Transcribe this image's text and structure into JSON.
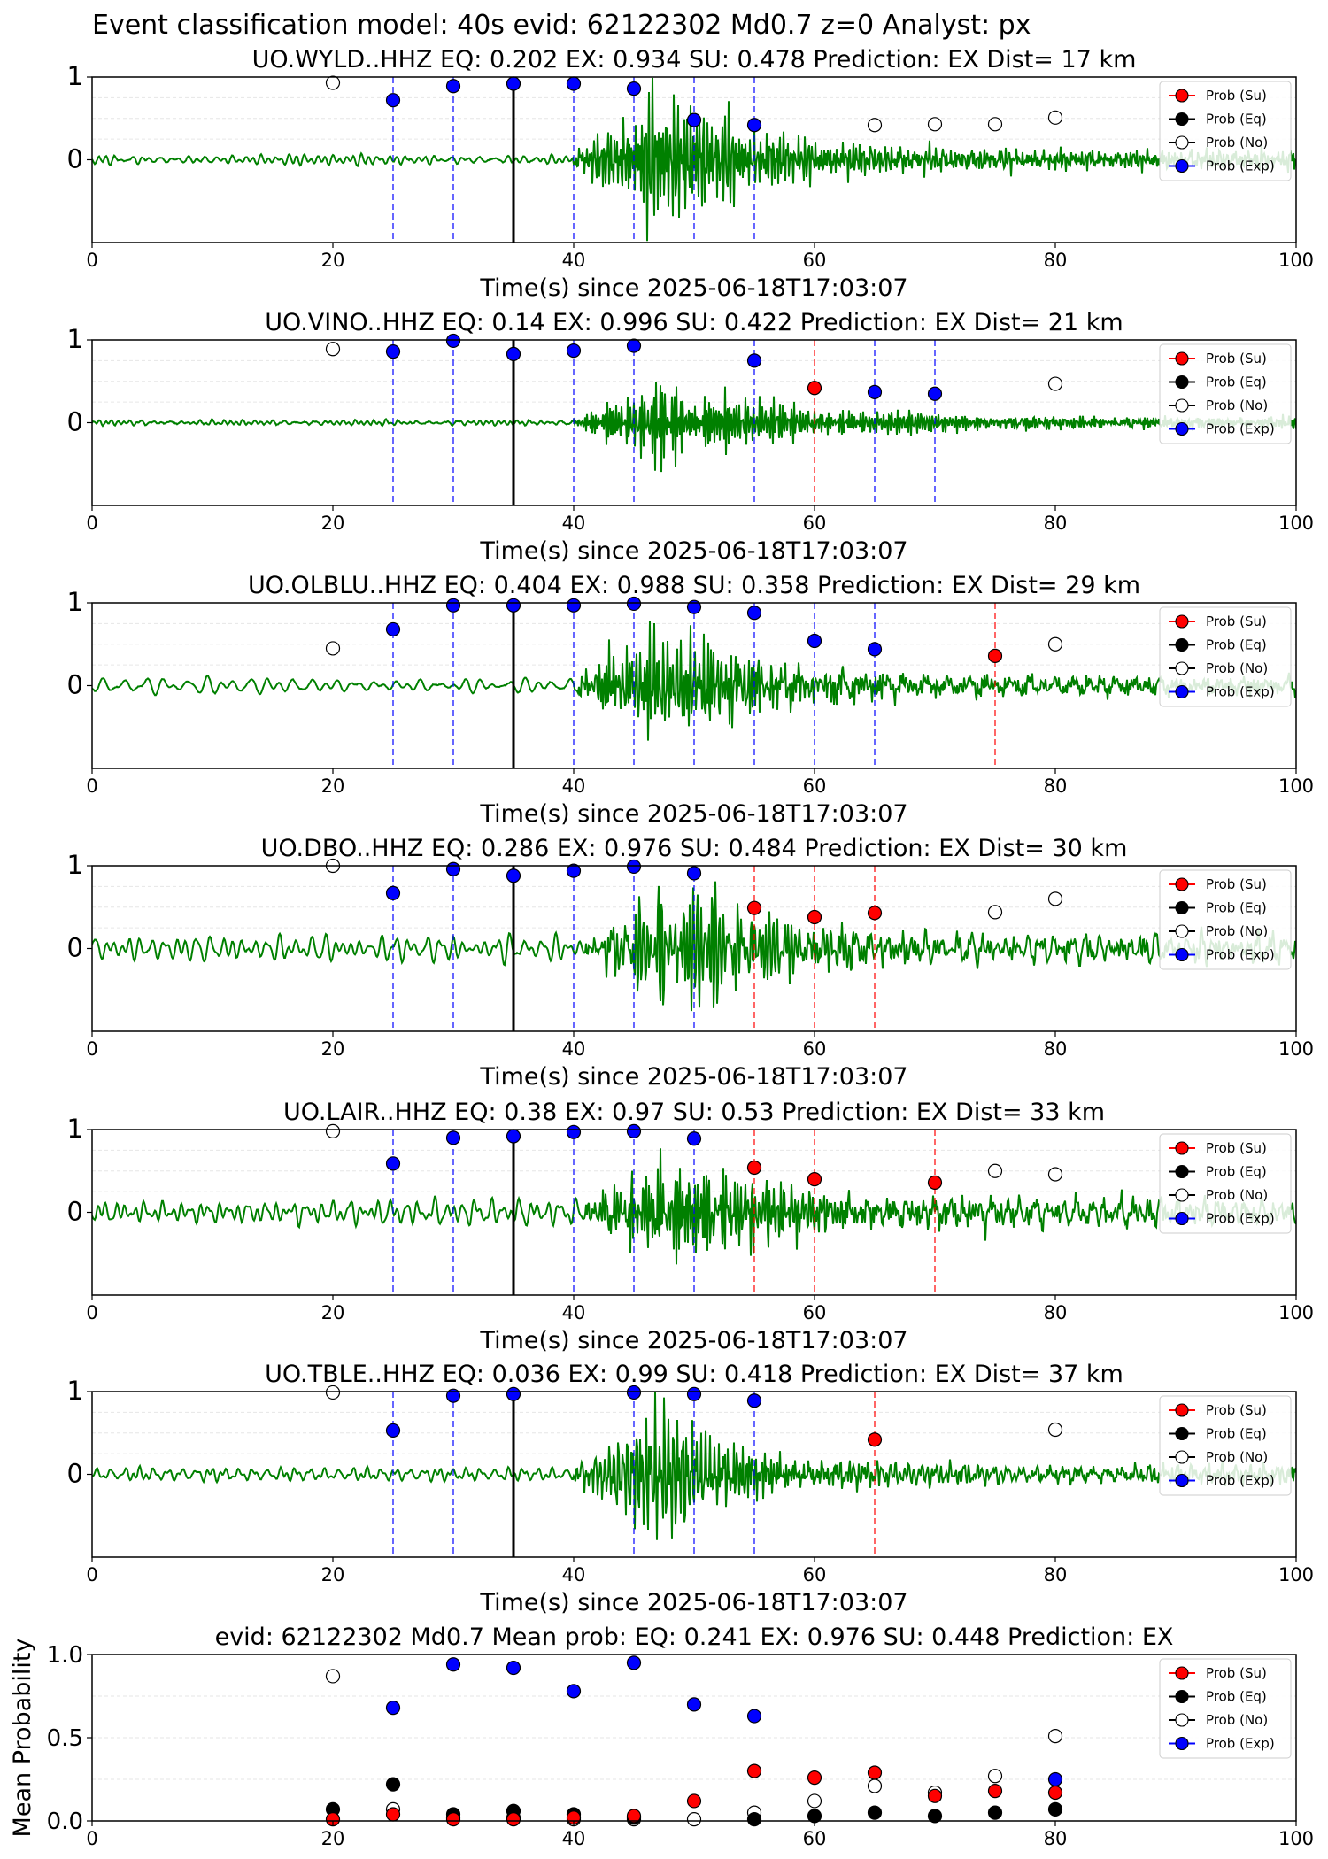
{
  "figure": {
    "suptitle": "Event classification model: 40s evid: 62122302 Md0.7 z=0 Analyst: px"
  },
  "legend": [
    {
      "label": "Prob (Su)",
      "key": "su",
      "color": "#ff0000",
      "fill": "#ff0000"
    },
    {
      "label": "Prob (Eq)",
      "key": "eq",
      "color": "#000000",
      "fill": "#000000"
    },
    {
      "label": "Prob (No)",
      "key": "no",
      "color": "#000000",
      "fill": "#ffffff"
    },
    {
      "label": "Prob (Exp)",
      "key": "exp",
      "color": "#0000ff",
      "fill": "#0000ff"
    }
  ],
  "colors": {
    "waveform": "#008000",
    "origin_line": "#000000",
    "exp_line": "#0000ff",
    "su_line": "#ff0000"
  },
  "chart_data": [
    {
      "type": "scatter",
      "title": "UO.WYLD..HHZ   EQ: 0.202  EX: 0.934  SU: 0.478   Prediction: EX    Dist= 17 km",
      "xlabel": "Time(s) since 2025-06-18T17:03:07",
      "xlim": [
        0,
        100
      ],
      "ylim": [
        -1,
        1
      ],
      "xticks": [
        "0",
        "20",
        "40",
        "60",
        "80",
        "100"
      ],
      "yticks": [
        "0",
        "1"
      ],
      "origin_time": 35,
      "waveform_onset": 40,
      "amp_pre": 0.05,
      "amp_event": 0.95,
      "wf_seed": 3,
      "points": {
        "no": [
          [
            20,
            0.93
          ],
          [
            65,
            0.42
          ],
          [
            70,
            0.43
          ],
          [
            75,
            0.43
          ],
          [
            80,
            0.51
          ]
        ],
        "exp": [
          [
            25,
            0.72
          ],
          [
            30,
            0.89
          ],
          [
            35,
            0.92
          ],
          [
            40,
            0.92
          ],
          [
            45,
            0.86
          ],
          [
            50,
            0.48
          ],
          [
            55,
            0.42
          ]
        ],
        "su": []
      },
      "vlines_exp": [
        25,
        30,
        40,
        45,
        50,
        55
      ],
      "vlines_su": []
    },
    {
      "type": "scatter",
      "title": "UO.VINO..HHZ   EQ: 0.14  EX: 0.996  SU: 0.422   Prediction: EX    Dist= 21 km",
      "xlabel": "Time(s) since 2025-06-18T17:03:07",
      "xlim": [
        0,
        100
      ],
      "ylim": [
        -1,
        1
      ],
      "xticks": [
        "0",
        "20",
        "40",
        "60",
        "80",
        "100"
      ],
      "yticks": [
        "0",
        "1"
      ],
      "origin_time": 35,
      "waveform_onset": 40,
      "amp_pre": 0.03,
      "amp_event": 0.9,
      "wf_seed": 7,
      "points": {
        "no": [
          [
            20,
            0.89
          ],
          [
            80,
            0.47
          ]
        ],
        "exp": [
          [
            25,
            0.86
          ],
          [
            30,
            0.99
          ],
          [
            35,
            0.83
          ],
          [
            40,
            0.87
          ],
          [
            45,
            0.93
          ],
          [
            55,
            0.75
          ],
          [
            65,
            0.37
          ],
          [
            70,
            0.35
          ]
        ],
        "su": [
          [
            60,
            0.42
          ]
        ]
      },
      "vlines_exp": [
        25,
        30,
        40,
        45,
        55,
        65,
        70
      ],
      "vlines_su": [
        60
      ]
    },
    {
      "type": "scatter",
      "title": "UO.OLBLU..HHZ   EQ: 0.404  EX: 0.988  SU: 0.358   Prediction: EX    Dist= 29 km",
      "xlabel": "Time(s) since 2025-06-18T17:03:07",
      "xlim": [
        0,
        100
      ],
      "ylim": [
        -1,
        1
      ],
      "xticks": [
        "0",
        "20",
        "40",
        "60",
        "80",
        "100"
      ],
      "yticks": [
        "0",
        "1"
      ],
      "origin_time": 35,
      "waveform_onset": 40,
      "amp_pre": 0.1,
      "amp_event": 0.85,
      "wf_seed": 11,
      "points": {
        "no": [
          [
            20,
            0.45
          ],
          [
            80,
            0.5
          ]
        ],
        "exp": [
          [
            25,
            0.68
          ],
          [
            30,
            0.97
          ],
          [
            35,
            0.97
          ],
          [
            40,
            0.97
          ],
          [
            45,
            0.99
          ],
          [
            50,
            0.95
          ],
          [
            55,
            0.88
          ],
          [
            60,
            0.54
          ],
          [
            65,
            0.44
          ]
        ],
        "su": [
          [
            75,
            0.36
          ]
        ]
      },
      "vlines_exp": [
        25,
        30,
        40,
        45,
        50,
        55,
        60,
        65
      ],
      "vlines_su": [
        75
      ]
    },
    {
      "type": "scatter",
      "title": "UO.DBO..HHZ   EQ: 0.286  EX: 0.976  SU: 0.484   Prediction: EX    Dist= 30 km",
      "xlabel": "Time(s) since 2025-06-18T17:03:07",
      "xlim": [
        0,
        100
      ],
      "ylim": [
        -1,
        1
      ],
      "xticks": [
        "0",
        "20",
        "40",
        "60",
        "80",
        "100"
      ],
      "yticks": [
        "0",
        "1"
      ],
      "origin_time": 35,
      "waveform_onset": 41,
      "amp_pre": 0.14,
      "amp_event": 0.85,
      "wf_seed": 19,
      "points": {
        "no": [
          [
            20,
            1.0
          ],
          [
            75,
            0.44
          ],
          [
            80,
            0.6
          ]
        ],
        "exp": [
          [
            25,
            0.67
          ],
          [
            30,
            0.96
          ],
          [
            35,
            0.88
          ],
          [
            40,
            0.94
          ],
          [
            45,
            0.99
          ],
          [
            50,
            0.91
          ]
        ],
        "su": [
          [
            55,
            0.49
          ],
          [
            60,
            0.38
          ],
          [
            65,
            0.43
          ]
        ]
      },
      "vlines_exp": [
        25,
        30,
        40,
        45,
        50
      ],
      "vlines_su": [
        55,
        60,
        65
      ]
    },
    {
      "type": "scatter",
      "title": "UO.LAIR..HHZ   EQ: 0.38  EX: 0.97  SU: 0.53   Prediction: EX    Dist= 33 km",
      "xlabel": "Time(s) since 2025-06-18T17:03:07",
      "xlim": [
        0,
        100
      ],
      "ylim": [
        -1,
        1
      ],
      "xticks": [
        "0",
        "20",
        "40",
        "60",
        "80",
        "100"
      ],
      "yticks": [
        "0",
        "1"
      ],
      "origin_time": 35,
      "waveform_onset": 41,
      "amp_pre": 0.15,
      "amp_event": 0.85,
      "wf_seed": 23,
      "points": {
        "no": [
          [
            20,
            0.98
          ],
          [
            75,
            0.5
          ],
          [
            80,
            0.46
          ]
        ],
        "exp": [
          [
            25,
            0.59
          ],
          [
            30,
            0.9
          ],
          [
            35,
            0.92
          ],
          [
            40,
            0.97
          ],
          [
            45,
            0.98
          ],
          [
            50,
            0.89
          ]
        ],
        "su": [
          [
            55,
            0.54
          ],
          [
            60,
            0.4
          ],
          [
            70,
            0.36
          ]
        ]
      },
      "vlines_exp": [
        25,
        30,
        40,
        45,
        50
      ],
      "vlines_su": [
        55,
        60,
        70
      ]
    },
    {
      "type": "scatter",
      "title": "UO.TBLE..HHZ   EQ: 0.036  EX: 0.99  SU: 0.418   Prediction: EX    Dist= 37 km",
      "xlabel": "Time(s) since 2025-06-18T17:03:07",
      "xlim": [
        0,
        100
      ],
      "ylim": [
        -1,
        1
      ],
      "xticks": [
        "0",
        "20",
        "40",
        "60",
        "80",
        "100"
      ],
      "yticks": [
        "0",
        "1"
      ],
      "origin_time": 35,
      "waveform_onset": 40,
      "amp_pre": 0.07,
      "amp_event": 0.92,
      "wf_seed": 29,
      "points": {
        "no": [
          [
            20,
            0.99
          ],
          [
            80,
            0.54
          ]
        ],
        "exp": [
          [
            25,
            0.53
          ],
          [
            30,
            0.95
          ],
          [
            35,
            0.97
          ],
          [
            45,
            0.99
          ],
          [
            50,
            0.97
          ],
          [
            55,
            0.89
          ]
        ],
        "su": [
          [
            65,
            0.42
          ]
        ]
      },
      "vlines_exp": [
        25,
        30,
        45,
        50,
        55
      ],
      "vlines_su": [
        65
      ]
    },
    {
      "type": "scatter",
      "title": "evid: 62122302  Md0.7   Mean prob:   EQ: 0.241  EX: 0.976  SU: 0.448   Prediction: EX",
      "ylabel": "Mean Probability",
      "xlim": [
        0,
        100
      ],
      "ylim": [
        0,
        1
      ],
      "xticks": [
        "0",
        "20",
        "40",
        "60",
        "80",
        "100"
      ],
      "yticks": [
        "0.0",
        "0.5",
        "1.0"
      ],
      "grid": true,
      "points": {
        "no": [
          [
            20,
            0.87
          ],
          [
            25,
            0.07
          ],
          [
            30,
            0.02
          ],
          [
            35,
            0.02
          ],
          [
            40,
            0.01
          ],
          [
            45,
            0.01
          ],
          [
            50,
            0.01
          ],
          [
            55,
            0.05
          ],
          [
            60,
            0.12
          ],
          [
            65,
            0.21
          ],
          [
            70,
            0.17
          ],
          [
            75,
            0.27
          ],
          [
            80,
            0.51
          ]
        ],
        "exp": [
          [
            25,
            0.68
          ],
          [
            30,
            0.94
          ],
          [
            35,
            0.92
          ],
          [
            40,
            0.78
          ],
          [
            45,
            0.95
          ],
          [
            50,
            0.7
          ],
          [
            55,
            0.63
          ],
          [
            80,
            0.25
          ]
        ],
        "eq": [
          [
            20,
            0.07
          ],
          [
            25,
            0.22
          ],
          [
            30,
            0.04
          ],
          [
            35,
            0.06
          ],
          [
            40,
            0.04
          ],
          [
            45,
            0.02
          ],
          [
            55,
            0.01
          ],
          [
            60,
            0.03
          ],
          [
            65,
            0.05
          ],
          [
            70,
            0.03
          ],
          [
            75,
            0.05
          ],
          [
            80,
            0.07
          ]
        ],
        "su": [
          [
            20,
            0.01
          ],
          [
            25,
            0.04
          ],
          [
            30,
            0.01
          ],
          [
            35,
            0.01
          ],
          [
            40,
            0.02
          ],
          [
            45,
            0.03
          ],
          [
            50,
            0.12
          ],
          [
            55,
            0.3
          ],
          [
            60,
            0.26
          ],
          [
            65,
            0.29
          ],
          [
            70,
            0.15
          ],
          [
            75,
            0.18
          ],
          [
            80,
            0.17
          ]
        ]
      },
      "vlines_exp": [],
      "vlines_su": []
    }
  ]
}
